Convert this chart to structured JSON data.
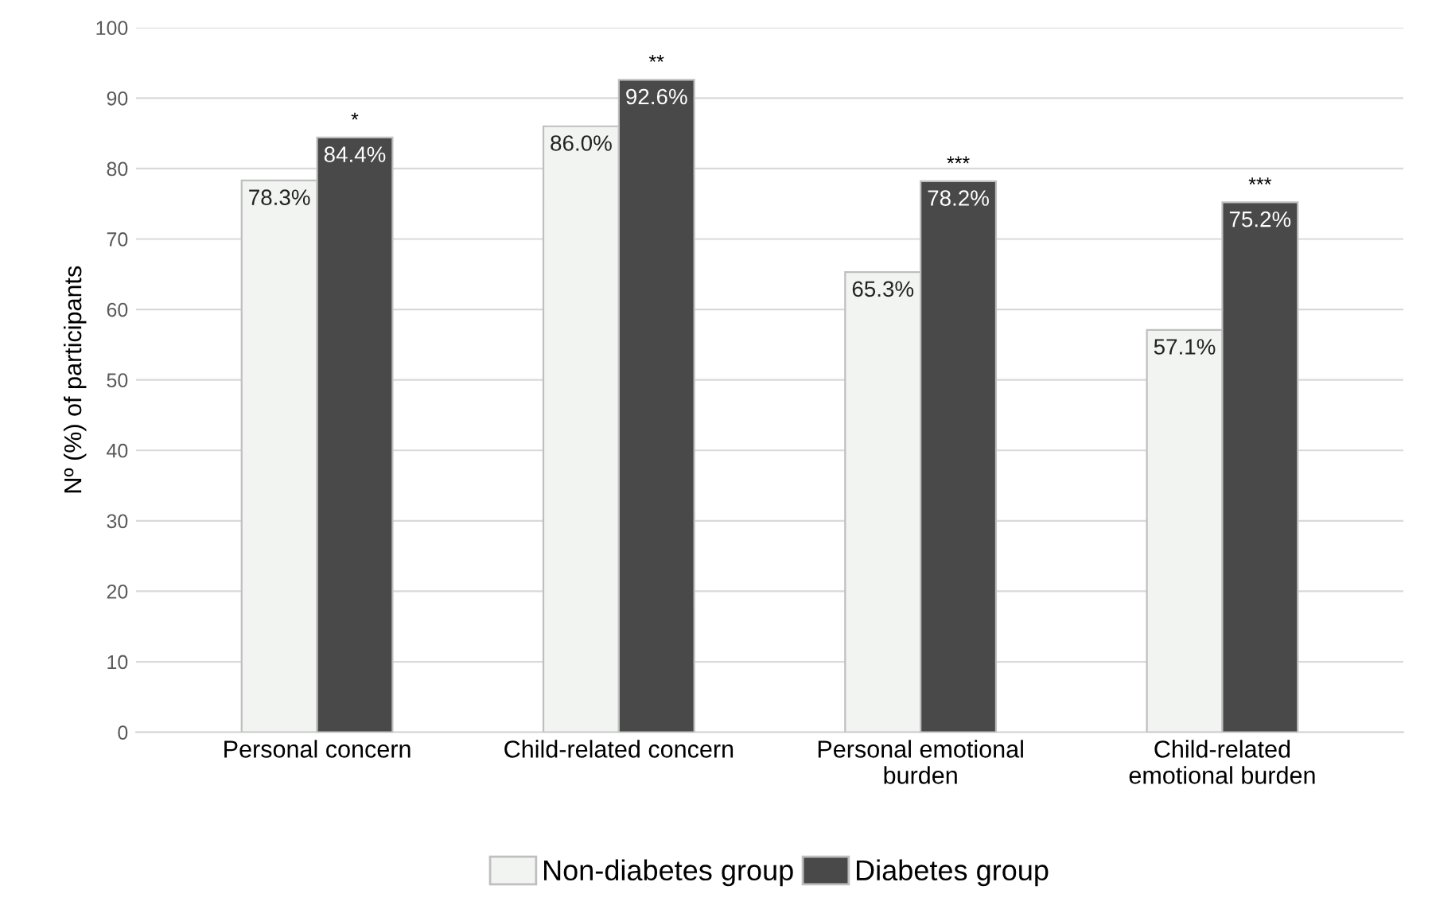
{
  "chart_data": {
    "type": "bar",
    "ylabel": "Nº (%) of participants",
    "categories": [
      "Personal concern",
      "Child-related concern",
      "Personal emotional burden",
      "Child-related emotional burden"
    ],
    "series": [
      {
        "name": "Non-diabetes group",
        "color": "#f2f4f2",
        "values": [
          78.3,
          86.0,
          65.3,
          57.1
        ],
        "value_labels": [
          "78.3%",
          "86.0%",
          "65.3%",
          "57.1%"
        ]
      },
      {
        "name": "Diabetes group",
        "color": "#494949",
        "values": [
          84.4,
          92.6,
          78.2,
          75.2
        ],
        "value_labels": [
          "84.4%",
          "92.6%",
          "78.2%",
          "75.2%"
        ]
      }
    ],
    "annotations": [
      {
        "text": "*",
        "x": "Personal concern",
        "y": 84.4
      },
      {
        "text": "**",
        "x": "Child-related concern",
        "y": 92.6
      },
      {
        "text": "***",
        "x": "Personal emotional burden",
        "y": 78.2
      },
      {
        "text": "***",
        "x": "Child-related emotional burden",
        "y": 75.2
      }
    ],
    "ylim": [
      0,
      100
    ],
    "yticks": [
      0,
      10,
      20,
      30,
      40,
      50,
      60,
      70,
      80,
      90,
      100
    ],
    "grid": "y",
    "legend": "bottom"
  }
}
